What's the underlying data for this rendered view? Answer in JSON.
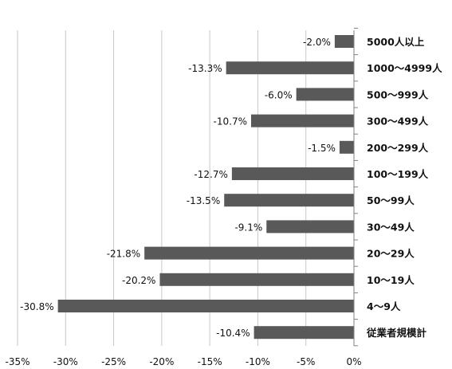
{
  "chart_data": {
    "type": "bar",
    "orientation": "horizontal",
    "categories": [
      "5000人以上",
      "1000～4999人",
      "500～999人",
      "300～499人",
      "200～299人",
      "100～199人",
      "50～99人",
      "30～49人",
      "20～29人",
      "10～19人",
      "4～9人",
      "従業者規模計"
    ],
    "values": [
      -2.0,
      -13.3,
      -6.0,
      -10.7,
      -1.5,
      -12.7,
      -13.5,
      -9.1,
      -21.8,
      -20.2,
      -30.8,
      -10.4
    ],
    "data_labels": [
      "-2.0%",
      "-13.3%",
      "-6.0%",
      "-10.7%",
      "-1.5%",
      "-12.7%",
      "-13.5%",
      "-9.1%",
      "-21.8%",
      "-20.2%",
      "-30.8%",
      "-10.4%"
    ],
    "xlim": [
      -35,
      0
    ],
    "x_ticks": [
      -35,
      -30,
      -25,
      -20,
      -15,
      -10,
      -5,
      0
    ],
    "x_tick_labels": [
      "-35%",
      "-30%",
      "-25%",
      "-20%",
      "-15%",
      "-10%",
      "-5%",
      "0%"
    ],
    "grid": "vertical",
    "legend": "none",
    "title": "",
    "xlabel": "",
    "ylabel": "",
    "bar_color": "#595959",
    "grid_color": "#c8c8c8",
    "axis_color": "#808080"
  }
}
